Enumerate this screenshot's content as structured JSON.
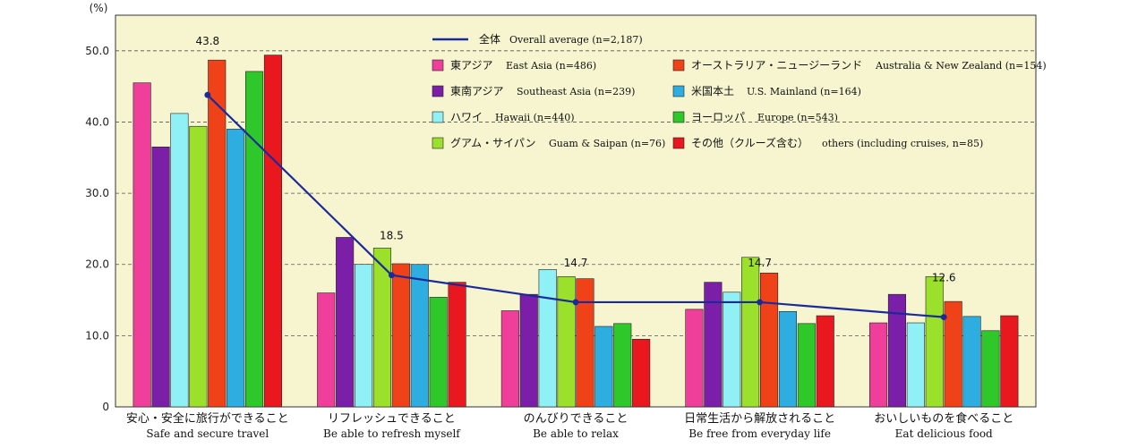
{
  "chart_data": {
    "type": "bar",
    "yunit": "(%)",
    "ylim": [
      0,
      55
    ],
    "yticks": [
      "0",
      "10.0",
      "20.0",
      "30.0",
      "40.0",
      "50.0"
    ],
    "categories": [
      {
        "jp": "安心・安全に旅行ができること",
        "en": "Safe and secure travel"
      },
      {
        "jp": "リフレッシュできること",
        "en": "Be able to refresh myself"
      },
      {
        "jp": "のんびりできること",
        "en": "Be able to relax"
      },
      {
        "jp": "日常生活から解放されること",
        "en": "Be free from everyday life"
      },
      {
        "jp": "おいしいものを食べること",
        "en": "Eat delicious food"
      }
    ],
    "series": [
      {
        "jp": "東アジア",
        "en": "East Asia (n=486)",
        "color": "#ef3f9a",
        "values": [
          45.5,
          16.0,
          13.5,
          13.7,
          11.8
        ]
      },
      {
        "jp": "東南アジア",
        "en": "Southeast Asia (n=239)",
        "color": "#7b1fa8",
        "values": [
          36.5,
          23.8,
          15.8,
          17.5,
          15.8
        ]
      },
      {
        "jp": "ハワイ",
        "en": "Hawaii (n=440)",
        "color": "#8ff0f5",
        "values": [
          41.2,
          20.0,
          19.3,
          16.1,
          11.8
        ]
      },
      {
        "jp": "グアム・サイパン",
        "en": "Guam & Saipan (n=76)",
        "color": "#9be02a",
        "values": [
          39.4,
          22.3,
          18.3,
          21.0,
          18.3
        ]
      },
      {
        "jp": "オーストラリア・ニュージーランド",
        "en": "Australia & New Zealand (n=154)",
        "color": "#f04218",
        "values": [
          48.7,
          20.1,
          18.0,
          18.8,
          14.8
        ]
      },
      {
        "jp": "米国本土",
        "en": "U.S. Mainland (n=164)",
        "color": "#2eaee0",
        "values": [
          39.0,
          20.0,
          11.3,
          13.4,
          12.7
        ]
      },
      {
        "jp": "ヨーロッパ",
        "en": "Europe (n=543)",
        "color": "#2ec82a",
        "values": [
          47.1,
          15.4,
          11.7,
          11.7,
          10.7
        ]
      },
      {
        "jp": "その他（クルーズ含む）",
        "en": "others (including cruises, n=85)",
        "color": "#e8181e",
        "values": [
          49.4,
          17.5,
          9.5,
          12.8,
          12.8
        ]
      }
    ],
    "line": {
      "jp": "全体",
      "en": "Overall average (n=2,187)",
      "color": "#1a2a9a",
      "values": [
        43.8,
        18.5,
        14.7,
        14.7,
        12.6
      ],
      "labels": [
        "43.8",
        "18.5",
        "14.7",
        "14.7",
        "12.6"
      ]
    },
    "grid": true,
    "legend_position": "top-right inside plot"
  }
}
